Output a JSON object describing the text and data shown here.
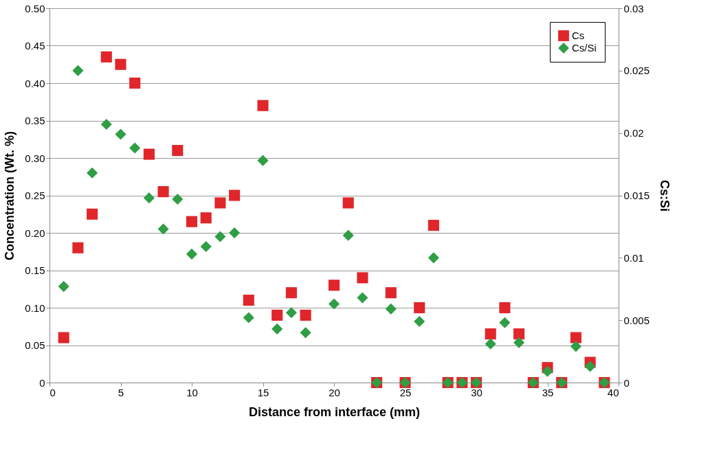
{
  "chart_data": {
    "type": "scatter",
    "xlabel": "Distance from interface (mm)",
    "ylabel": "Concentration (Wt. %)",
    "y2label": "Cs:Si",
    "xlim": [
      0,
      40
    ],
    "xticks": [
      0,
      5,
      10,
      15,
      20,
      25,
      30,
      35,
      40
    ],
    "ylim": [
      0,
      0.5
    ],
    "yticks": [
      0,
      0.05,
      {
        "value": 0.1,
        "label": "0.10"
      },
      0.15,
      {
        "value": 0.2,
        "label": "0.20"
      },
      0.25,
      {
        "value": 0.3,
        "label": "0.30"
      },
      0.35,
      {
        "value": 0.4,
        "label": "0.40"
      },
      0.45,
      {
        "value": 0.5,
        "label": "0.50"
      }
    ],
    "y2lim": [
      0,
      0.03
    ],
    "y2ticks": [
      0,
      0.005,
      0.01,
      0.015,
      0.02,
      0.025,
      0.03
    ],
    "grid": "y",
    "legend": "top right",
    "series": [
      {
        "name": "Cs",
        "color": "#e0262b",
        "marker": "square",
        "x": [
          1,
          2,
          3,
          4,
          5,
          6,
          7,
          8,
          9,
          10,
          11,
          12,
          13,
          14,
          15,
          16,
          17,
          18,
          20,
          21,
          22,
          23,
          24,
          25,
          26,
          27,
          28,
          29,
          30,
          31,
          32,
          33,
          34,
          35,
          36,
          37,
          38,
          39
        ],
        "values": [
          0.06,
          0.18,
          0.225,
          0.435,
          0.425,
          0.4,
          0.305,
          0.255,
          0.31,
          0.215,
          0.22,
          0.24,
          0.25,
          0.11,
          0.37,
          0.09,
          0.12,
          0.09,
          0.13,
          0.24,
          0.14,
          0,
          0.12,
          0,
          0.1,
          0.21,
          0,
          0,
          0,
          0.065,
          0.1,
          0.065,
          0,
          0.02,
          0,
          0.06,
          0.027,
          0
        ]
      },
      {
        "name": "Cs/Si",
        "color": "#2f9e45",
        "marker": "diamond",
        "axis": "y2",
        "x": [
          1,
          2,
          3,
          4,
          5,
          6,
          7,
          8,
          9,
          10,
          11,
          12,
          13,
          14,
          15,
          16,
          17,
          18,
          20,
          21,
          22,
          23,
          24,
          25,
          26,
          27,
          28,
          29,
          30,
          31,
          32,
          33,
          34,
          35,
          36,
          37,
          38,
          39
        ],
        "values": [
          0.0077,
          0.025,
          0.0168,
          0.0207,
          0.0199,
          0.0188,
          0.0148,
          0.0123,
          0.0147,
          0.0103,
          0.0109,
          0.0117,
          0.012,
          0.0052,
          0.0178,
          0.0043,
          0.0056,
          0.004,
          0.0063,
          0.0118,
          0.0068,
          0,
          0.0059,
          0,
          0.0049,
          0.01,
          0,
          0,
          0,
          0.0031,
          0.0048,
          0.0032,
          0,
          0.0009,
          0,
          0.0029,
          0.0013,
          0
        ]
      }
    ]
  }
}
